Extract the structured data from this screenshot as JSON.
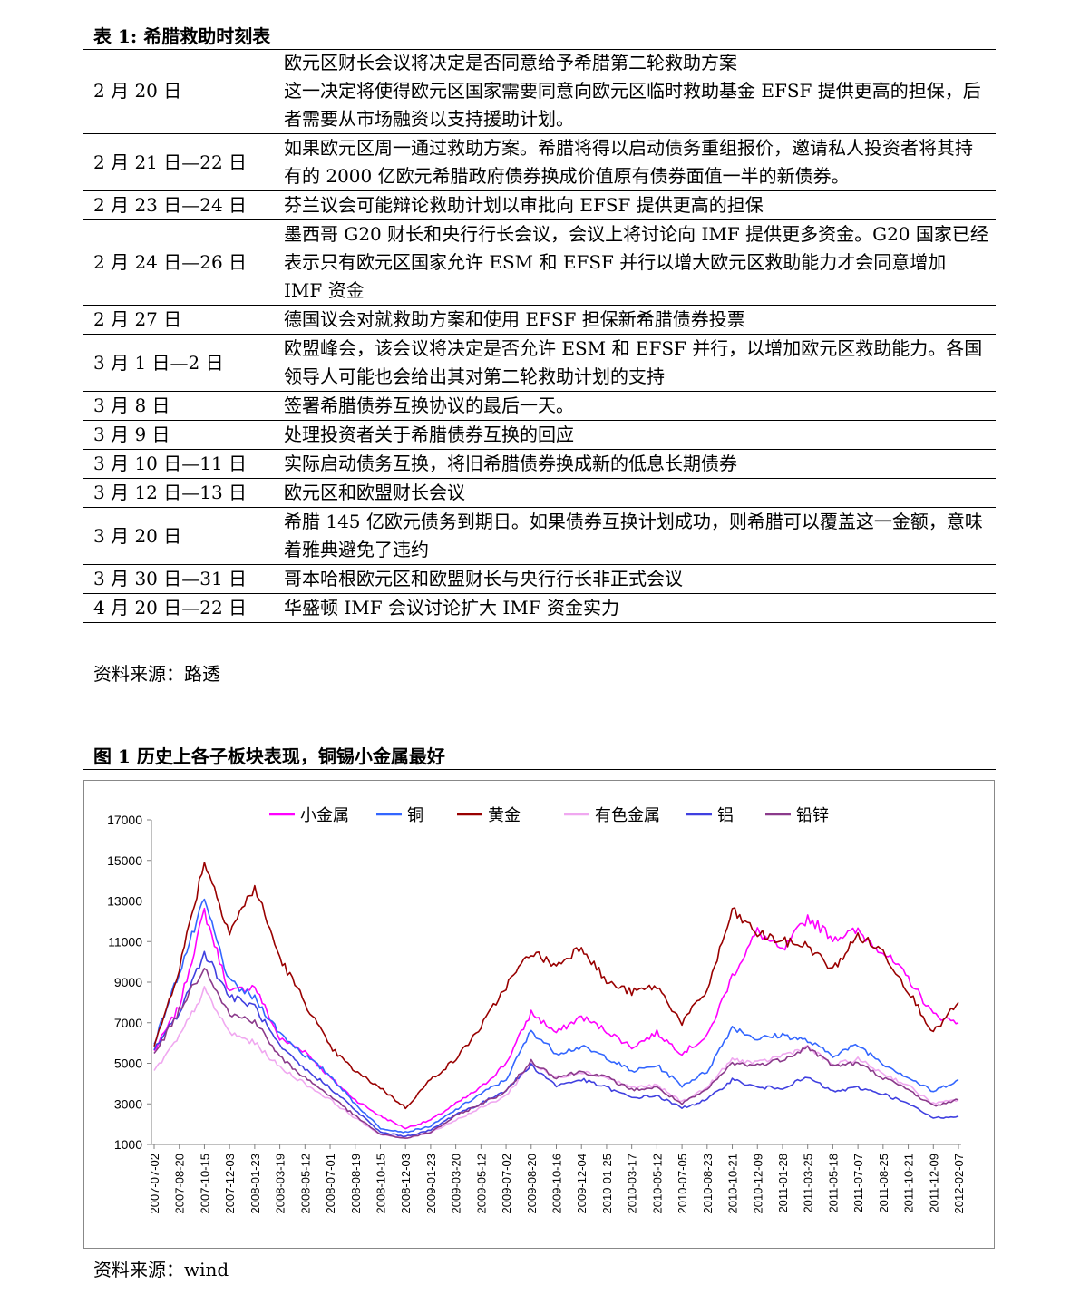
{
  "table": {
    "title": "表 1: 希腊救助时刻表",
    "rows": [
      {
        "date": "2 月 20 日",
        "event": "欧元区财长会议将决定是否同意给予希腊第二轮救助方案\n这一决定将使得欧元区国家需要同意向欧元区临时救助基金 EFSF 提供更高的担保，后者需要从市场融资以支持援助计划。"
      },
      {
        "date": "2 月 21 日—22 日",
        "event": "如果欧元区周一通过救助方案。希腊将得以启动债务重组报价，邀请私人投资者将其持有的 2000 亿欧元希腊政府债券换成价值原有债券面值一半的新债券。"
      },
      {
        "date": "2 月 23 日—24 日",
        "event": "芬兰议会可能辩论救助计划以审批向 EFSF 提供更高的担保"
      },
      {
        "date": "2 月 24 日—26 日",
        "event": "墨西哥 G20 财长和央行行长会议，会议上将讨论向 IMF 提供更多资金。G20 国家已经表示只有欧元区国家允许 ESM 和 EFSF 并行以增大欧元区救助能力才会同意增加 IMF 资金"
      },
      {
        "date": "2 月 27 日",
        "event": "德国议会对就救助方案和使用 EFSF 担保新希腊债券投票"
      },
      {
        "date": "3 月 1 日—2 日",
        "event": "欧盟峰会，该会议将决定是否允许 ESM 和 EFSF 并行，以增加欧元区救助能力。各国领导人可能也会给出其对第二轮救助计划的支持"
      },
      {
        "date": "3 月 8 日",
        "event": "签署希腊债券互换协议的最后一天。"
      },
      {
        "date": "3 月 9 日",
        "event": "处理投资者关于希腊债券互换的回应"
      },
      {
        "date": "3 月 10 日—11 日",
        "event": "实际启动债务互换，将旧希腊债券换成新的低息长期债券"
      },
      {
        "date": "3 月 12 日—13 日",
        "event": "欧元区和欧盟财长会议"
      },
      {
        "date": "3 月 20 日",
        "event": "希腊 145 亿欧元债务到期日。如果债券互换计划成功，则希腊可以覆盖这一金额，意味着雅典避免了违约"
      },
      {
        "date": "3 月 30 日—31 日",
        "event": "哥本哈根欧元区和欧盟财长与央行行长非正式会议"
      },
      {
        "date": "4 月 20 日—22 日",
        "event": "华盛顿 IMF 会议讨论扩大 IMF 资金实力"
      }
    ],
    "source": "资料来源：路透"
  },
  "figure": {
    "title": "图 1    历史上各子板块表现，铜锡小金属最好",
    "source": "资料来源：wind"
  },
  "chart_data": {
    "type": "line",
    "title": "",
    "xlabel": "",
    "ylabel": "",
    "ylim": [
      1000,
      17000
    ],
    "yticks": [
      "17000",
      "15000",
      "13000",
      "11000",
      "9000",
      "7000",
      "5000",
      "3000",
      "1000"
    ],
    "x": [
      "2007-07-02",
      "2007-08-20",
      "2007-10-15",
      "2007-12-03",
      "2008-01-23",
      "2008-03-19",
      "2008-05-12",
      "2008-07-01",
      "2008-08-19",
      "2008-10-15",
      "2008-12-03",
      "2009-01-23",
      "2009-03-20",
      "2009-05-12",
      "2009-07-02",
      "2009-08-20",
      "2009-10-16",
      "2009-12-04",
      "2010-01-25",
      "2010-03-17",
      "2010-05-12",
      "2010-07-05",
      "2010-08-23",
      "2010-10-21",
      "2010-12-09",
      "2011-01-28",
      "2011-03-25",
      "2011-05-18",
      "2011-07-07",
      "2011-08-25",
      "2011-10-21",
      "2011-12-09",
      "2012-02-07"
    ],
    "series": [
      {
        "name": "小金属",
        "color": "#ff00ff",
        "values": [
          5600,
          7800,
          12500,
          8500,
          8800,
          6200,
          5600,
          4300,
          3200,
          2400,
          1800,
          2200,
          3000,
          3800,
          5000,
          7500,
          6500,
          7300,
          6600,
          5800,
          6500,
          5500,
          6300,
          9300,
          11500,
          10500,
          12200,
          11200,
          11500,
          10500,
          9200,
          7400,
          7000
        ]
      },
      {
        "name": "铜",
        "color": "#3366ff",
        "values": [
          6000,
          9500,
          13000,
          9000,
          8200,
          6500,
          5400,
          4400,
          3000,
          1800,
          1600,
          1900,
          2700,
          3500,
          4200,
          6600,
          5500,
          5800,
          5300,
          4600,
          4900,
          3900,
          4600,
          6800,
          6200,
          6400,
          6100,
          5400,
          5900,
          5000,
          4300,
          3600,
          4200
        ]
      },
      {
        "name": "黄金",
        "color": "#990000",
        "values": [
          5800,
          9700,
          15000,
          11500,
          13700,
          10200,
          8000,
          5800,
          4600,
          3800,
          2800,
          4200,
          5200,
          6800,
          8800,
          10500,
          9800,
          10800,
          9000,
          8500,
          8800,
          7000,
          8600,
          12500,
          11400,
          11000,
          10800,
          9600,
          11300,
          10500,
          8600,
          6500,
          8000
        ]
      },
      {
        "name": "有色金属",
        "color": "#f0a8f0",
        "values": [
          4600,
          6300,
          8600,
          6500,
          6000,
          4800,
          4000,
          3200,
          2300,
          1500,
          1300,
          1600,
          2200,
          2800,
          3400,
          5000,
          4300,
          4600,
          4300,
          3800,
          3900,
          3100,
          3800,
          5200,
          5000,
          5400,
          5800,
          4900,
          5200,
          4500,
          3900,
          3000,
          3200
        ]
      },
      {
        "name": "铝",
        "color": "#4040e0",
        "values": [
          5700,
          7500,
          10500,
          8300,
          7800,
          5800,
          4700,
          3800,
          2700,
          1600,
          1400,
          1700,
          2500,
          3000,
          3700,
          4900,
          3900,
          4200,
          3800,
          3300,
          3400,
          2800,
          3200,
          4200,
          3800,
          3800,
          4300,
          3600,
          3800,
          3500,
          3000,
          2300,
          2400
        ]
      },
      {
        "name": "铅锌",
        "color": "#8b3a8b",
        "values": [
          5400,
          7600,
          9800,
          7400,
          7100,
          5300,
          4300,
          3400,
          2400,
          1500,
          1300,
          1600,
          2400,
          3000,
          3600,
          5100,
          4300,
          4600,
          4300,
          3700,
          3800,
          3000,
          3700,
          5000,
          4900,
          5200,
          5800,
          4900,
          5000,
          4300,
          3700,
          2900,
          3200
        ]
      }
    ]
  }
}
